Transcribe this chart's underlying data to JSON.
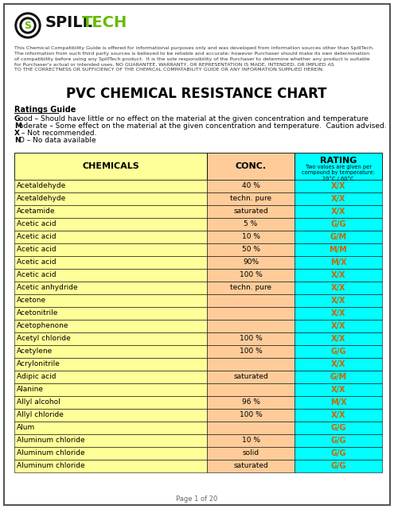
{
  "title": "PVC CHEMICAL RESISTANCE CHART",
  "page_footer": "Page 1 of 20",
  "disclaimer_lines": [
    "This Chemical Compatibility Guide is offered for informational purposes only and was developed from information sources other than SpillTech.",
    "The information from such third party sources is believed to be reliable and accurate; however Purchaser should make its own determination",
    "of compatibility before using any SpillTech product.  It is the sole responsibility of the Purchaser to determine whether any product is suitable",
    "for Purchaser's actual or intended uses. NO GUARANTEE, WARRANTY, OR REPRESENTATION IS MADE, INTENDED, OR IMPLIED AS",
    "TO THE CORRECTNESS OR SUFFICIENCY OF THE CHEMICAL COMPATABILITY GUIDE OR ANY INFORMATION SUPPLIED HEREIN."
  ],
  "ratings_guide_title": "Ratings Guide",
  "ratings_guide": [
    [
      "G",
      "ood – Should have little or no effect on the material at the given concentration and temperature"
    ],
    [
      "M",
      "oderate – Some effect on the material at the given concentration and temperature.  Caution advised."
    ],
    [
      "X",
      " – Not recommended."
    ],
    [
      "N",
      "D – No data available"
    ]
  ],
  "rating_subtext": "Two values are given per\ncompound by temperature:\n20°C / 60°C",
  "chemicals_col_bg": "#FFFF99",
  "conc_col_bg": "#FFCC99",
  "rating_col_bg": "#00FFFF",
  "header_row_bg_chem": "#FFFF99",
  "header_row_bg_conc": "#FFCC99",
  "header_row_bg_rating": "#00FFFF",
  "text_color_rating": "#CC6600",
  "rows": [
    [
      "Acetaldehyde",
      "40 %",
      "X/X"
    ],
    [
      "Acetaldehyde",
      "techn. pure",
      "X/X"
    ],
    [
      "Acetamide",
      "saturated",
      "X/X"
    ],
    [
      "Acetic acid",
      "5 %",
      "G/G"
    ],
    [
      "Acetic acid",
      "10 %",
      "G/M"
    ],
    [
      "Acetic acid",
      "50 %",
      "M/M"
    ],
    [
      "Acetic acid",
      "90%",
      "M/X"
    ],
    [
      "Acetic acid",
      "100 %",
      "X/X"
    ],
    [
      "Acetic anhydride",
      "techn. pure",
      "X/X"
    ],
    [
      "Acetone",
      "",
      "X/X"
    ],
    [
      "Acetonitrile",
      "",
      "X/X"
    ],
    [
      "Acetophenone",
      "",
      "X/X"
    ],
    [
      "Acetyl chloride",
      "100 %",
      "X/X"
    ],
    [
      "Acetylene",
      "100 %",
      "G/G"
    ],
    [
      "Acrylonitrile",
      "",
      "X/X"
    ],
    [
      "Adipic acid",
      "saturated",
      "G/M"
    ],
    [
      "Alanine",
      "",
      "X/X"
    ],
    [
      "Allyl alcohol",
      "96 %",
      "M/X"
    ],
    [
      "Allyl chloride",
      "100 %",
      "X/X"
    ],
    [
      "Alum",
      "",
      "G/G"
    ],
    [
      "Aluminum chloride",
      "10 %",
      "G/G"
    ],
    [
      "Aluminum chloride",
      "solid",
      "G/G"
    ],
    [
      "Aluminum chloride",
      "saturated",
      "G/G"
    ]
  ],
  "outer_border_color": "#555555",
  "page_bg": "#ffffff",
  "logo_green": "#66BB00",
  "logo_black": "#111111"
}
